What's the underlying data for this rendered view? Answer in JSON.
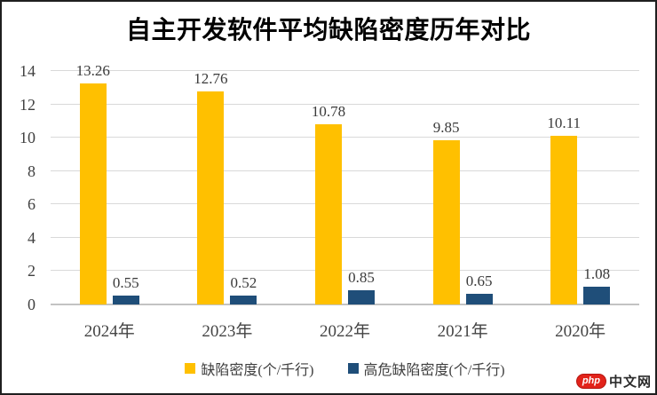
{
  "chart_data": {
    "type": "bar",
    "title": "自主开发软件平均缺陷密度历年对比",
    "categories": [
      "2024年",
      "2023年",
      "2022年",
      "2021年",
      "2020年"
    ],
    "series": [
      {
        "name": "缺陷密度(个/千行)",
        "color": "#FFC000",
        "values": [
          13.26,
          12.76,
          10.78,
          9.85,
          10.11
        ]
      },
      {
        "name": "高危缺陷密度(个/千行)",
        "color": "#1F4E79",
        "values": [
          0.55,
          0.52,
          0.85,
          0.65,
          1.08
        ]
      }
    ],
    "ylim": [
      0,
      14
    ],
    "yticks": [
      0,
      2,
      4,
      6,
      8,
      10,
      12,
      14
    ],
    "grid": true,
    "legend_position": "bottom",
    "value_labels": true
  },
  "watermark": {
    "logo_text": "php",
    "site_text": "中文网",
    "logo_color": "#e2231a",
    "text_color": "#2b2b2b"
  }
}
